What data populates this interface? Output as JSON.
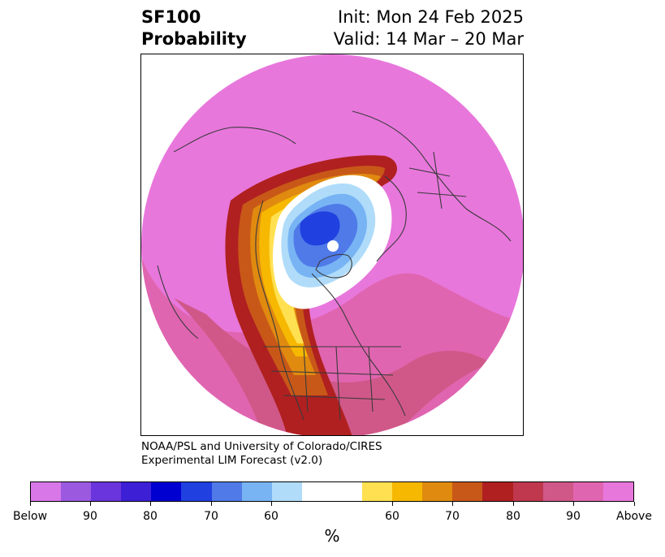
{
  "header": {
    "title_line1": "SF100",
    "title_line2": "Probability",
    "init": "Init: Mon 24 Feb 2025",
    "valid": "Valid: 14 Mar – 20 Mar"
  },
  "credit": {
    "line1": "NOAA/PSL and University of Colorado/CIRES",
    "line2": "Experimental LIM Forecast (v2.0)"
  },
  "colorbar": {
    "colors": [
      "#d877e8",
      "#9b59e0",
      "#6a35dc",
      "#3d1fd6",
      "#0000d0",
      "#2040e0",
      "#4f7ae8",
      "#78b4f4",
      "#b0dcfa",
      "#ffffff",
      "#ffffff",
      "#ffe050",
      "#f6b800",
      "#e08a10",
      "#c85818",
      "#b02020",
      "#c0384e",
      "#d05888",
      "#e065b0",
      "#e877dc"
    ],
    "labels": [
      "Below",
      "90",
      "80",
      "70",
      "60",
      "60",
      "70",
      "80",
      "90",
      "Above"
    ],
    "unit": "%"
  },
  "map": {
    "fill_colors": {
      "above_outer": "#e877dc",
      "above_90": "#e065b0",
      "band_80_90": "#d05888",
      "band_red": "#b02020",
      "band_orange": "#c85818",
      "band_amber": "#e08a10",
      "band_gold": "#f6b800",
      "band_yellow": "#ffe050",
      "neutral": "#ffffff",
      "below_light": "#b0dcfa",
      "below_mid": "#78b4f4",
      "below_blue": "#4f7ae8",
      "below_deep": "#2040e0",
      "coastline": "#3a3a3a"
    }
  }
}
